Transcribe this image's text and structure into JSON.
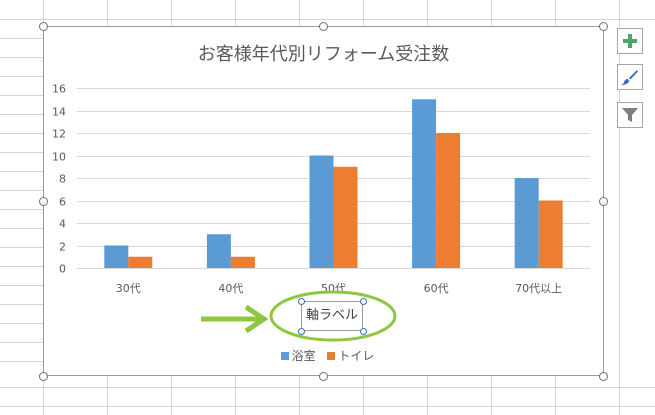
{
  "chart_data": {
    "type": "bar",
    "title": "お客様年代別リフォーム受注数",
    "categories": [
      "30代",
      "40代",
      "50代",
      "60代",
      "70代以上"
    ],
    "series": [
      {
        "name": "浴室",
        "values": [
          2,
          3,
          10,
          15,
          8
        ],
        "color": "#5b9bd5"
      },
      {
        "name": "トイレ",
        "values": [
          1,
          1,
          9,
          12,
          6
        ],
        "color": "#ed7d31"
      }
    ],
    "yticks": [
      0,
      2,
      4,
      6,
      8,
      10,
      12,
      14,
      16
    ],
    "ylim": [
      0,
      16
    ],
    "grid": true,
    "legend_position": "bottom"
  },
  "axis_title": {
    "text": "軸ラベル"
  },
  "toolbar": {
    "add_element_icon": "plus-icon",
    "style_icon": "brush-icon",
    "filter_icon": "filter-icon"
  },
  "colors": {
    "highlight": "#8dc63f",
    "gridline": "#d9d9d9",
    "selection": "#2e74b5"
  }
}
